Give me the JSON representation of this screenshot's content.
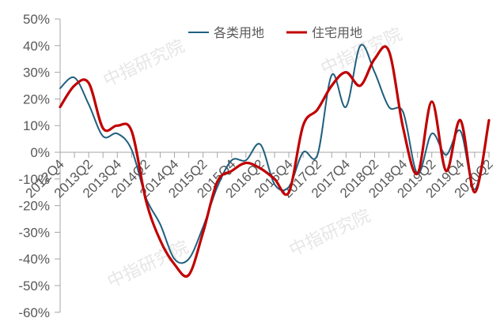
{
  "chart_data": {
    "type": "line",
    "title": "",
    "xlabel": "",
    "ylabel": "",
    "ylim": [
      -60,
      50
    ],
    "yticks": [
      50,
      40,
      30,
      20,
      10,
      0,
      -10,
      -20,
      -30,
      -40,
      -50,
      -60
    ],
    "ytick_labels": [
      "50%",
      "40%",
      "30%",
      "20%",
      "10%",
      "0%",
      "-10%",
      "-20%",
      "-30%",
      "-40%",
      "-50%",
      "-60%"
    ],
    "x": [
      "2012Q4",
      "2013Q1",
      "2013Q2",
      "2013Q3",
      "2013Q4",
      "2014Q1",
      "2014Q2",
      "2014Q3",
      "2014Q4",
      "2015Q1",
      "2015Q2",
      "2015Q3",
      "2015Q4",
      "2016Q1",
      "2016Q2",
      "2016Q3",
      "2016Q4",
      "2017Q1",
      "2017Q2",
      "2017Q3",
      "2017Q4",
      "2018Q1",
      "2018Q2",
      "2018Q3",
      "2018Q4",
      "2019Q1",
      "2019Q2",
      "2019Q3",
      "2019Q4",
      "2020Q1",
      "2020Q2"
    ],
    "xtick_labels": [
      "2012Q4",
      "2013Q2",
      "2013Q4",
      "2014Q2",
      "2014Q4",
      "2015Q2",
      "2015Q4",
      "2016Q2",
      "2016Q4",
      "2017Q2",
      "2017Q4",
      "2018Q2",
      "2018Q4",
      "2019Q2",
      "2019Q4",
      "2020Q2"
    ],
    "series": [
      {
        "name": "各类用地",
        "color": "#1f5f7f",
        "values": [
          24,
          28,
          18,
          6,
          7,
          1,
          -17,
          -27,
          -40,
          -40,
          -28,
          -13,
          -3,
          -3,
          3,
          -12,
          -13,
          0,
          -1,
          29,
          17,
          40,
          30,
          17,
          15,
          -8,
          7,
          -1,
          8,
          -14,
          11
        ]
      },
      {
        "name": "住宅用地",
        "color": "#c00000",
        "values": [
          17,
          25,
          26,
          9,
          10,
          8,
          -18,
          -33,
          -42,
          -46,
          -30,
          -11,
          -7,
          -4,
          -6,
          -10,
          -15,
          10,
          16,
          25,
          30,
          25,
          35,
          38,
          9,
          -8,
          19,
          -7,
          12,
          -15,
          12
        ]
      }
    ],
    "legend": {
      "position": "top",
      "entries": [
        "各类用地",
        "住宅用地"
      ]
    },
    "grid": false
  },
  "watermark": "中指研究院"
}
